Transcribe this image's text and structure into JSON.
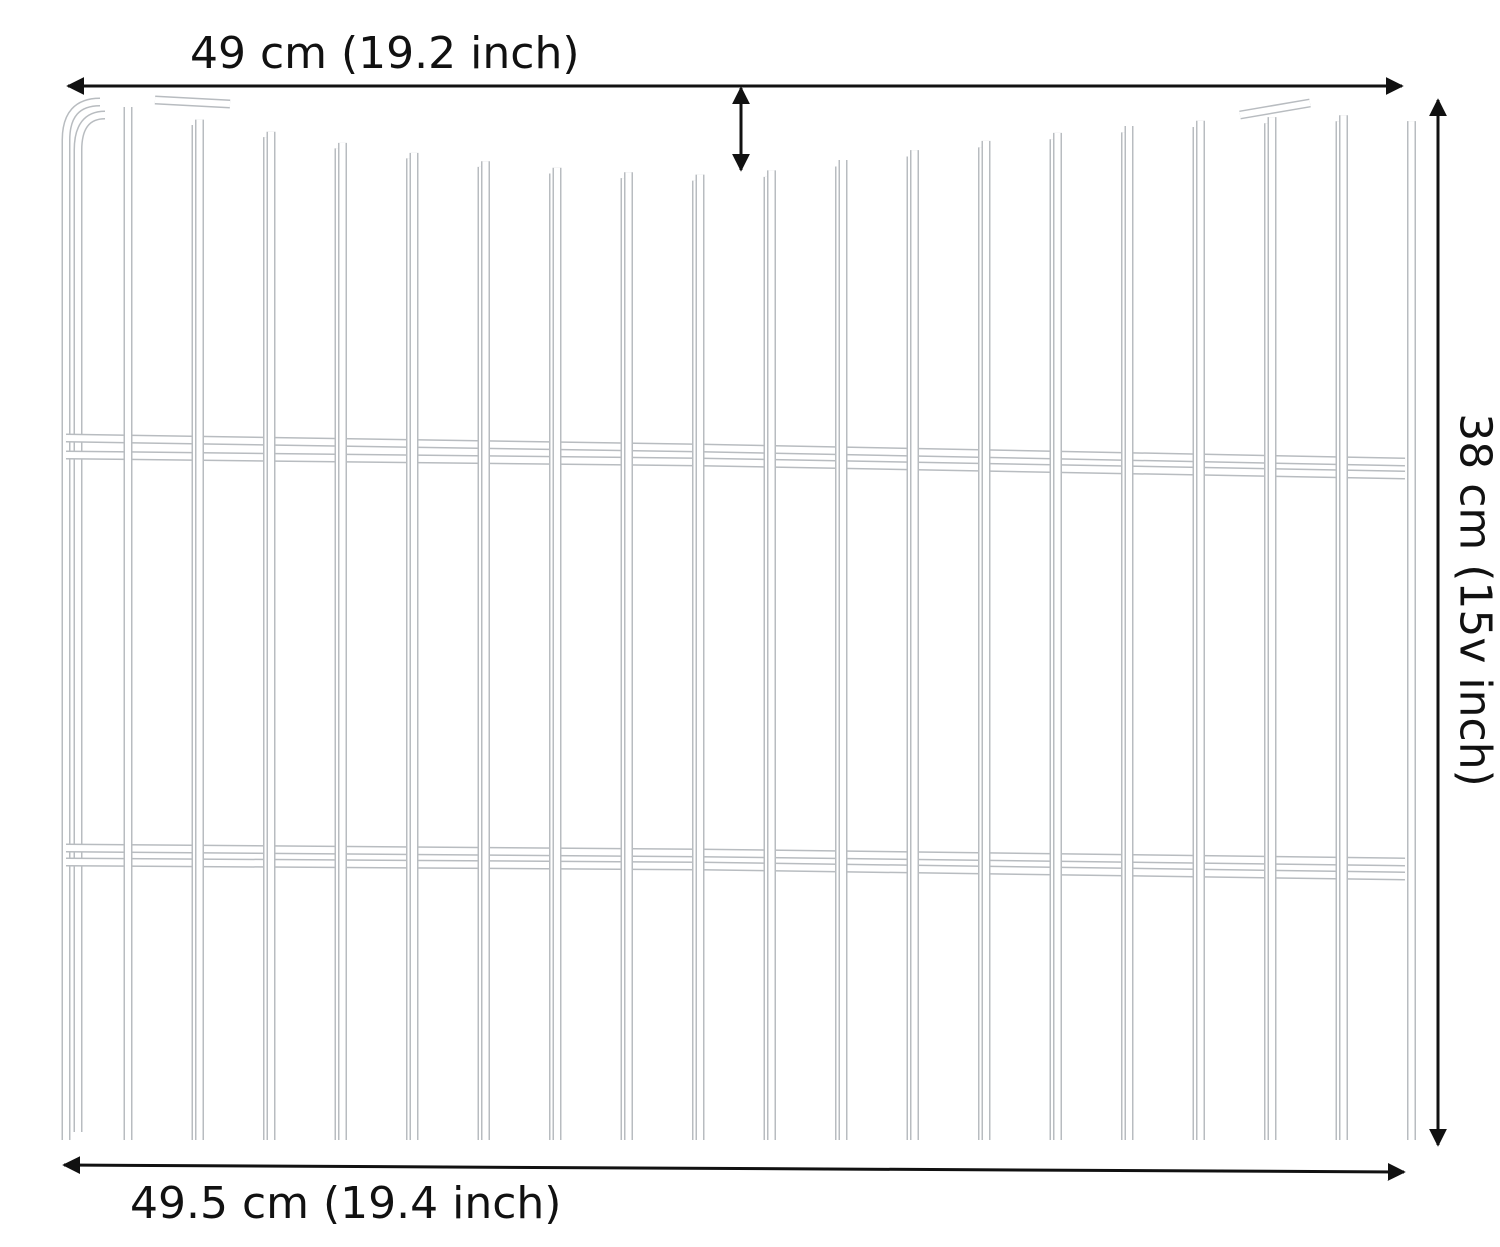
{
  "dimensions": {
    "top_width": "49 cm (19.2 inch)",
    "bottom_width": "49.5 cm (19.4 inch)",
    "height": "38 cm (15v inch)"
  },
  "colors": {
    "wire": "#ffffff",
    "wire_edge": "#b8bcc0",
    "arrow": "#111111"
  }
}
